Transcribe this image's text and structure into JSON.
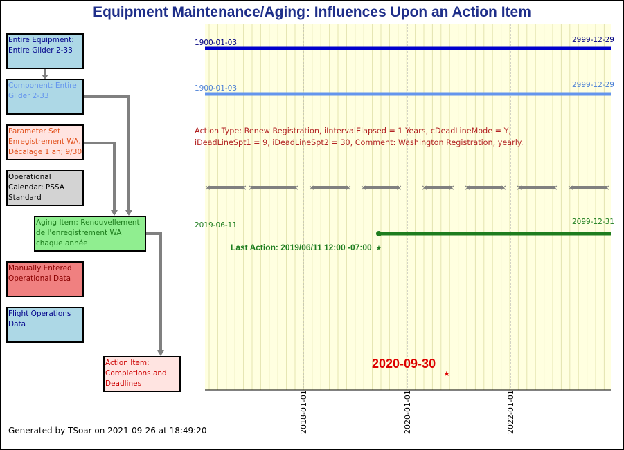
{
  "title": "Equipment Maintenance/Aging: Influences Upon an Action Item",
  "footer": "Generated by TSoar on 2021-09-26 at 18:49:20",
  "colors": {
    "title": "#1f2f8a",
    "equipment_fill": "#add8e6",
    "parameter_fill": "#ffe4e1",
    "calendar_fill": "#d3d3d3",
    "aging_fill": "#90ee90",
    "manual_fill": "#f08080",
    "connector": "#808080",
    "timeline_bg": "#ffffe0",
    "bar_dark_blue": "#0000cd",
    "bar_light_blue": "#6495ed",
    "action_text": "#b22222",
    "aging_bar": "#1e7d1e",
    "deadline": "#dd0000"
  },
  "boxes": {
    "entire_equipment": "Entire Equipment:\nEntire Glider 2-33",
    "component": "Component: Entire\nGlider 2-33",
    "parameter_set": "Parameter Set\nEnregistrement WA,\nDécalage 1 an; 9/30",
    "operational_calendar": "Operational\nCalendar: PSSA\nStandard",
    "aging_item": "Aging Item: Renouvellement\nde l'enregistrement WA\nchaque année",
    "manual_data": "Manually Entered\nOperational Data",
    "flight_ops": "Flight Operations\nData",
    "action_item": "Action Item:\nCompletions and\nDeadlines"
  },
  "timeline": {
    "bar1": {
      "start_label": "1900-01-03",
      "end_label": "2999-12-29"
    },
    "bar2": {
      "start_label": "1900-01-03",
      "end_label": "2999-12-29"
    },
    "action_type_line1": "Action Type: Renew Registration, iIntervalElapsed = 1 Years, cDeadLineMode = Y,",
    "action_type_line2": "iDeadLineSpt1 = 9, iDeadLineSpt2 = 30,  Comment: Washington Registration, yearly.",
    "aging_bar": {
      "start_label": "2019-06-11",
      "end_label": "2099-12-31"
    },
    "last_action": "Last Action: 2019/06/11 12:00 -07:00",
    "deadline": "2020-09-30",
    "x_ticks": [
      "2018-01-01",
      "2020-01-01",
      "2022-01-01"
    ]
  }
}
